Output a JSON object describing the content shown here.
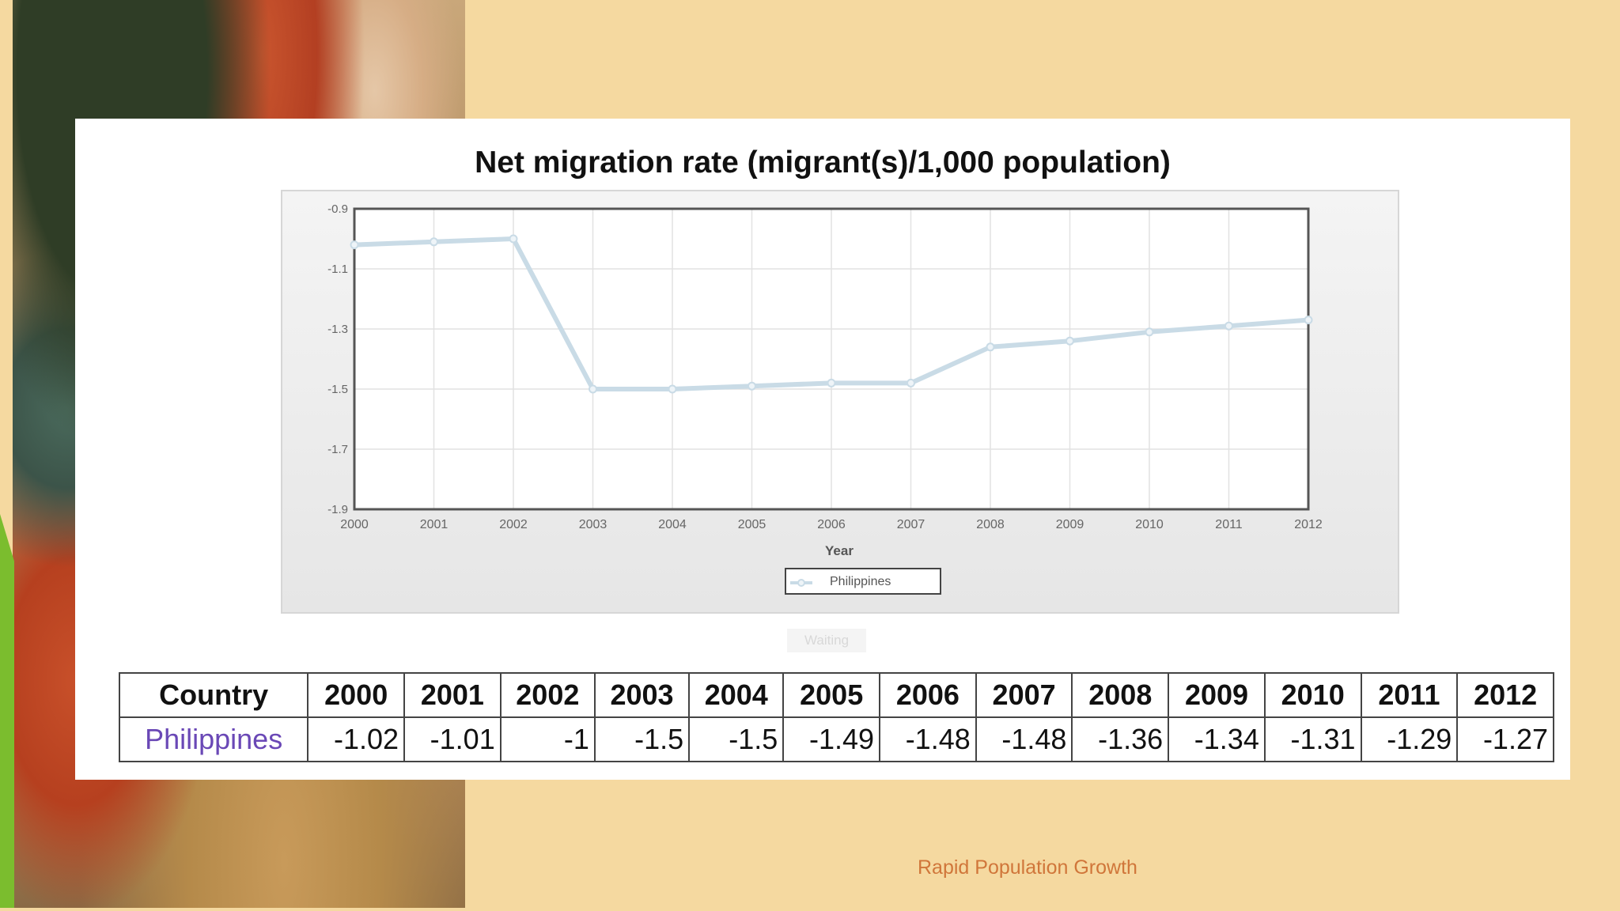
{
  "slide": {
    "footer": "Rapid Population Growth",
    "status": "Waiting"
  },
  "colors": {
    "background": "#f5d9a0",
    "line": "#c9dbe6",
    "country_link": "#6a48b6",
    "footer": "#d0763a",
    "accent_bar": "#7bbd2e"
  },
  "chart_data": {
    "type": "line",
    "title": "Net migration rate (migrant(s)/1,000 population)",
    "xlabel": "Year",
    "ylabel": "",
    "x": [
      "2000",
      "2001",
      "2002",
      "2003",
      "2004",
      "2005",
      "2006",
      "2007",
      "2008",
      "2009",
      "2010",
      "2011",
      "2012"
    ],
    "series": [
      {
        "name": "Philippines",
        "values": [
          -1.02,
          -1.01,
          -1,
          -1.5,
          -1.5,
          -1.49,
          -1.48,
          -1.48,
          -1.36,
          -1.34,
          -1.31,
          -1.29,
          -1.27
        ]
      }
    ],
    "ylim": [
      -1.9,
      -0.9
    ],
    "yticks": [
      "-0.9",
      "-1.1",
      "-1.3",
      "-1.5",
      "-1.7",
      "-1.9"
    ],
    "grid": true,
    "legend": "bottom-center"
  },
  "table": {
    "headers": [
      "Country",
      "2000",
      "2001",
      "2002",
      "2003",
      "2004",
      "2005",
      "2006",
      "2007",
      "2008",
      "2009",
      "2010",
      "2011",
      "2012"
    ],
    "rows": [
      [
        "Philippines",
        "-1.02",
        "-1.01",
        "-1",
        "-1.5",
        "-1.5",
        "-1.49",
        "-1.48",
        "-1.48",
        "-1.36",
        "-1.34",
        "-1.31",
        "-1.29",
        "-1.27"
      ]
    ]
  }
}
